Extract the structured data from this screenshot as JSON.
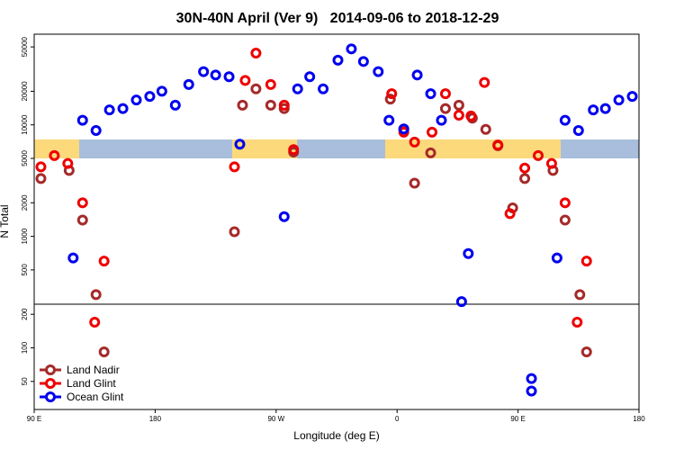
{
  "chart_data": {
    "type": "scatter",
    "title": "30N-40N April (Ver 9)   2014-09-06 to 2018-12-29",
    "xlabel": "Longitude (deg E)",
    "ylabel": "N Total",
    "log_y": true,
    "legend": "lower left",
    "xlim": [
      90,
      540
    ],
    "ylim": [
      28,
      65000
    ],
    "xticks": [
      {
        "value": 90,
        "label": "90 E"
      },
      180,
      {
        "value": 270,
        "label": "90 W"
      },
      {
        "value": 360,
        "label": "0"
      },
      {
        "value": 450,
        "label": "90 E"
      },
      {
        "value": 540,
        "label": "180"
      }
    ],
    "yticks": [
      50,
      100,
      200,
      500,
      1000,
      2000,
      5000,
      10000,
      20000,
      50000
    ],
    "series": [
      {
        "name": "Land Nadir",
        "color": "#a52a2a",
        "x": [
          95,
          116,
          126,
          136,
          142,
          239,
          245,
          255,
          266,
          276,
          283,
          355,
          365,
          373,
          385,
          396,
          406,
          416,
          426,
          435,
          446,
          455,
          476,
          485,
          496,
          501
        ],
        "values": [
          3300,
          3900,
          1400,
          300,
          92,
          1100,
          15000,
          21000,
          15000,
          14000,
          5700,
          17000,
          9100,
          3000,
          5600,
          14000,
          15000,
          11500,
          9100,
          6500,
          1800,
          3300,
          3900,
          1400,
          300,
          92
        ]
      },
      {
        "name": "Land Glint",
        "color": "#ee0000",
        "x": [
          95,
          105,
          115,
          126,
          135,
          142,
          239,
          247,
          255,
          266,
          276,
          283,
          356,
          365,
          373,
          386,
          396,
          406,
          415,
          425,
          435,
          444,
          455,
          465,
          475,
          485,
          494,
          501
        ],
        "values": [
          4200,
          5300,
          4500,
          2000,
          170,
          600,
          4200,
          25000,
          44000,
          23000,
          15000,
          6000,
          19000,
          8600,
          7000,
          8600,
          19000,
          12200,
          12000,
          24000,
          6600,
          1600,
          4100,
          5300,
          4500,
          2000,
          170,
          600
        ]
      },
      {
        "name": "Ocean Glint",
        "color": "#0000ee",
        "x": [
          119,
          126,
          136,
          146,
          156,
          166,
          176,
          185,
          195,
          205,
          216,
          225,
          235,
          243,
          276,
          286,
          295,
          305,
          316,
          326,
          335,
          346,
          354,
          365,
          375,
          385,
          393,
          408,
          413,
          460,
          460,
          479,
          485,
          495,
          506,
          515,
          525,
          535
        ],
        "values": [
          640,
          11000,
          8900,
          13600,
          14000,
          16700,
          18000,
          20000,
          15000,
          23000,
          30000,
          28000,
          27000,
          6700,
          1500,
          21000,
          27000,
          21000,
          38000,
          48000,
          37000,
          30000,
          11000,
          9200,
          28000,
          19000,
          11000,
          260,
          700,
          53,
          41,
          640,
          11000,
          8900,
          13600,
          14000,
          16700,
          18000
        ]
      }
    ]
  }
}
